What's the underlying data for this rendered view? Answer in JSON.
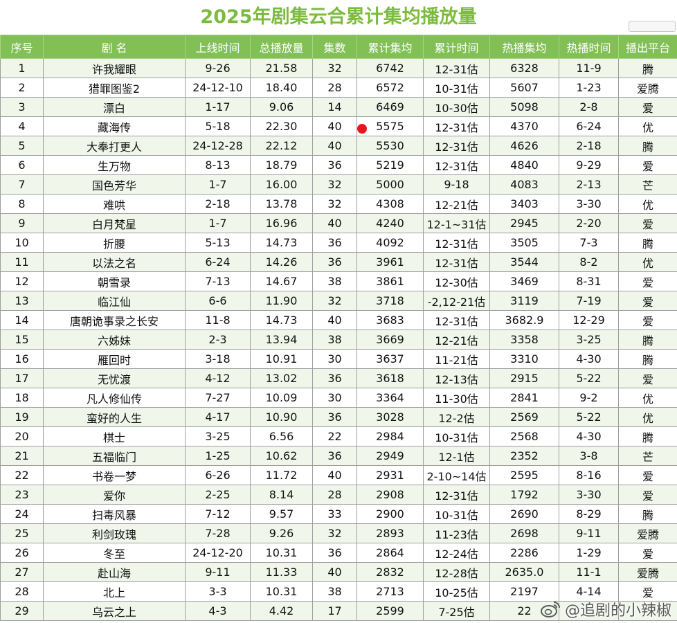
{
  "title": "2025年剧集云合累计集均播放量",
  "headers": [
    "序号",
    "剧 名",
    "上线时间",
    "总播放量",
    "集数",
    "累计集均",
    "累计时间",
    "热播集均",
    "热播时间",
    "播出平台"
  ],
  "rows": [
    [
      "1",
      "许我耀眼",
      "9-26",
      "21.58",
      "32",
      "6742",
      "12-31估",
      "6328",
      "11-9",
      "腾"
    ],
    [
      "2",
      "猎罪图鉴2",
      "24-12-10",
      "18.40",
      "28",
      "6572",
      "10-31估",
      "5607",
      "1-23",
      "爱腾"
    ],
    [
      "3",
      "漂白",
      "1-17",
      "9.06",
      "14",
      "6469",
      "10-30估",
      "5098",
      "2-8",
      "爱"
    ],
    [
      "4",
      "藏海传",
      "5-18",
      "22.30",
      "40",
      "5575",
      "12-31估",
      "4370",
      "6-24",
      "优"
    ],
    [
      "5",
      "大奉打更人",
      "24-12-28",
      "22.12",
      "40",
      "5530",
      "12-31估",
      "4626",
      "2-18",
      "腾"
    ],
    [
      "6",
      "生万物",
      "8-13",
      "18.79",
      "36",
      "5219",
      "12-31估",
      "4840",
      "9-29",
      "爱"
    ],
    [
      "7",
      "国色芳华",
      "1-7",
      "16.00",
      "32",
      "5000",
      "9-18",
      "4083",
      "2-13",
      "芒"
    ],
    [
      "8",
      "难哄",
      "2-18",
      "13.78",
      "32",
      "4308",
      "12-21估",
      "3403",
      "3-30",
      "优"
    ],
    [
      "9",
      "白月梵星",
      "1-7",
      "16.96",
      "40",
      "4240",
      "12-1~31估",
      "2945",
      "2-20",
      "爱"
    ],
    [
      "10",
      "折腰",
      "5-13",
      "14.73",
      "36",
      "4092",
      "12-31估",
      "3505",
      "7-3",
      "腾"
    ],
    [
      "11",
      "以法之名",
      "6-24",
      "14.26",
      "36",
      "3961",
      "12-31估",
      "3544",
      "8-2",
      "优"
    ],
    [
      "12",
      "朝雪录",
      "7-13",
      "14.67",
      "38",
      "3861",
      "12-30估",
      "3469",
      "8-31",
      "爱"
    ],
    [
      "13",
      "临江仙",
      "6-6",
      "11.90",
      "32",
      "3718",
      "-2,12-21估",
      "3119",
      "7-19",
      "爱"
    ],
    [
      "14",
      "唐朝诡事录之长安",
      "11-8",
      "14.73",
      "40",
      "3683",
      "12-31估",
      "3682.9",
      "12-29",
      "爱"
    ],
    [
      "15",
      "六姊妹",
      "2-3",
      "13.94",
      "38",
      "3669",
      "12-21估",
      "3358",
      "3-25",
      "腾"
    ],
    [
      "16",
      "雁回时",
      "3-18",
      "10.91",
      "30",
      "3637",
      "11-21估",
      "3310",
      "4-30",
      "腾"
    ],
    [
      "17",
      "无忧渡",
      "4-12",
      "13.02",
      "36",
      "3618",
      "12-13估",
      "2915",
      "5-22",
      "爱"
    ],
    [
      "18",
      "凡人修仙传",
      "7-27",
      "10.09",
      "30",
      "3364",
      "11-30估",
      "2841",
      "9-2",
      "优"
    ],
    [
      "19",
      "蛮好的人生",
      "4-17",
      "10.90",
      "36",
      "3028",
      "12-2估",
      "2569",
      "5-22",
      "优"
    ],
    [
      "20",
      "棋士",
      "3-25",
      "6.56",
      "22",
      "2984",
      "10-31估",
      "2568",
      "4-30",
      "腾"
    ],
    [
      "21",
      "五福临门",
      "1-25",
      "10.62",
      "36",
      "2949",
      "12-1估",
      "2352",
      "3-8",
      "芒"
    ],
    [
      "22",
      "书卷一梦",
      "6-26",
      "11.72",
      "40",
      "2931",
      "2-10~14估",
      "2595",
      "8-16",
      "爱"
    ],
    [
      "23",
      "爱你",
      "2-25",
      "8.14",
      "28",
      "2908",
      "12-31估",
      "1792",
      "3-30",
      "爱"
    ],
    [
      "24",
      "扫毒风暴",
      "7-12",
      "9.57",
      "33",
      "2900",
      "10-31估",
      "2690",
      "8-29",
      "腾"
    ],
    [
      "25",
      "利剑玫瑰",
      "7-28",
      "9.26",
      "32",
      "2893",
      "11-23估",
      "2698",
      "9-11",
      "爱腾"
    ],
    [
      "26",
      "冬至",
      "24-12-20",
      "10.31",
      "36",
      "2864",
      "12-24估",
      "2286",
      "1-29",
      "爱"
    ],
    [
      "27",
      "赴山海",
      "9-11",
      "11.33",
      "40",
      "2832",
      "12-28估",
      "2635.0",
      "11-1",
      "爱腾"
    ],
    [
      "28",
      "北上",
      "3-3",
      "10.31",
      "38",
      "2713",
      "10-25估",
      "2197",
      "4-14",
      "爱"
    ],
    [
      "29",
      "乌云之上",
      "4-3",
      "4.42",
      "17",
      "2599",
      "7-25估",
      "22",
      "",
      ""
    ]
  ],
  "watermark": "@追剧的小辣椒",
  "colors": {
    "title": "#7dbb3f",
    "header": "#82c056",
    "band": "#f0f7ea",
    "marker": "#e8141e"
  }
}
